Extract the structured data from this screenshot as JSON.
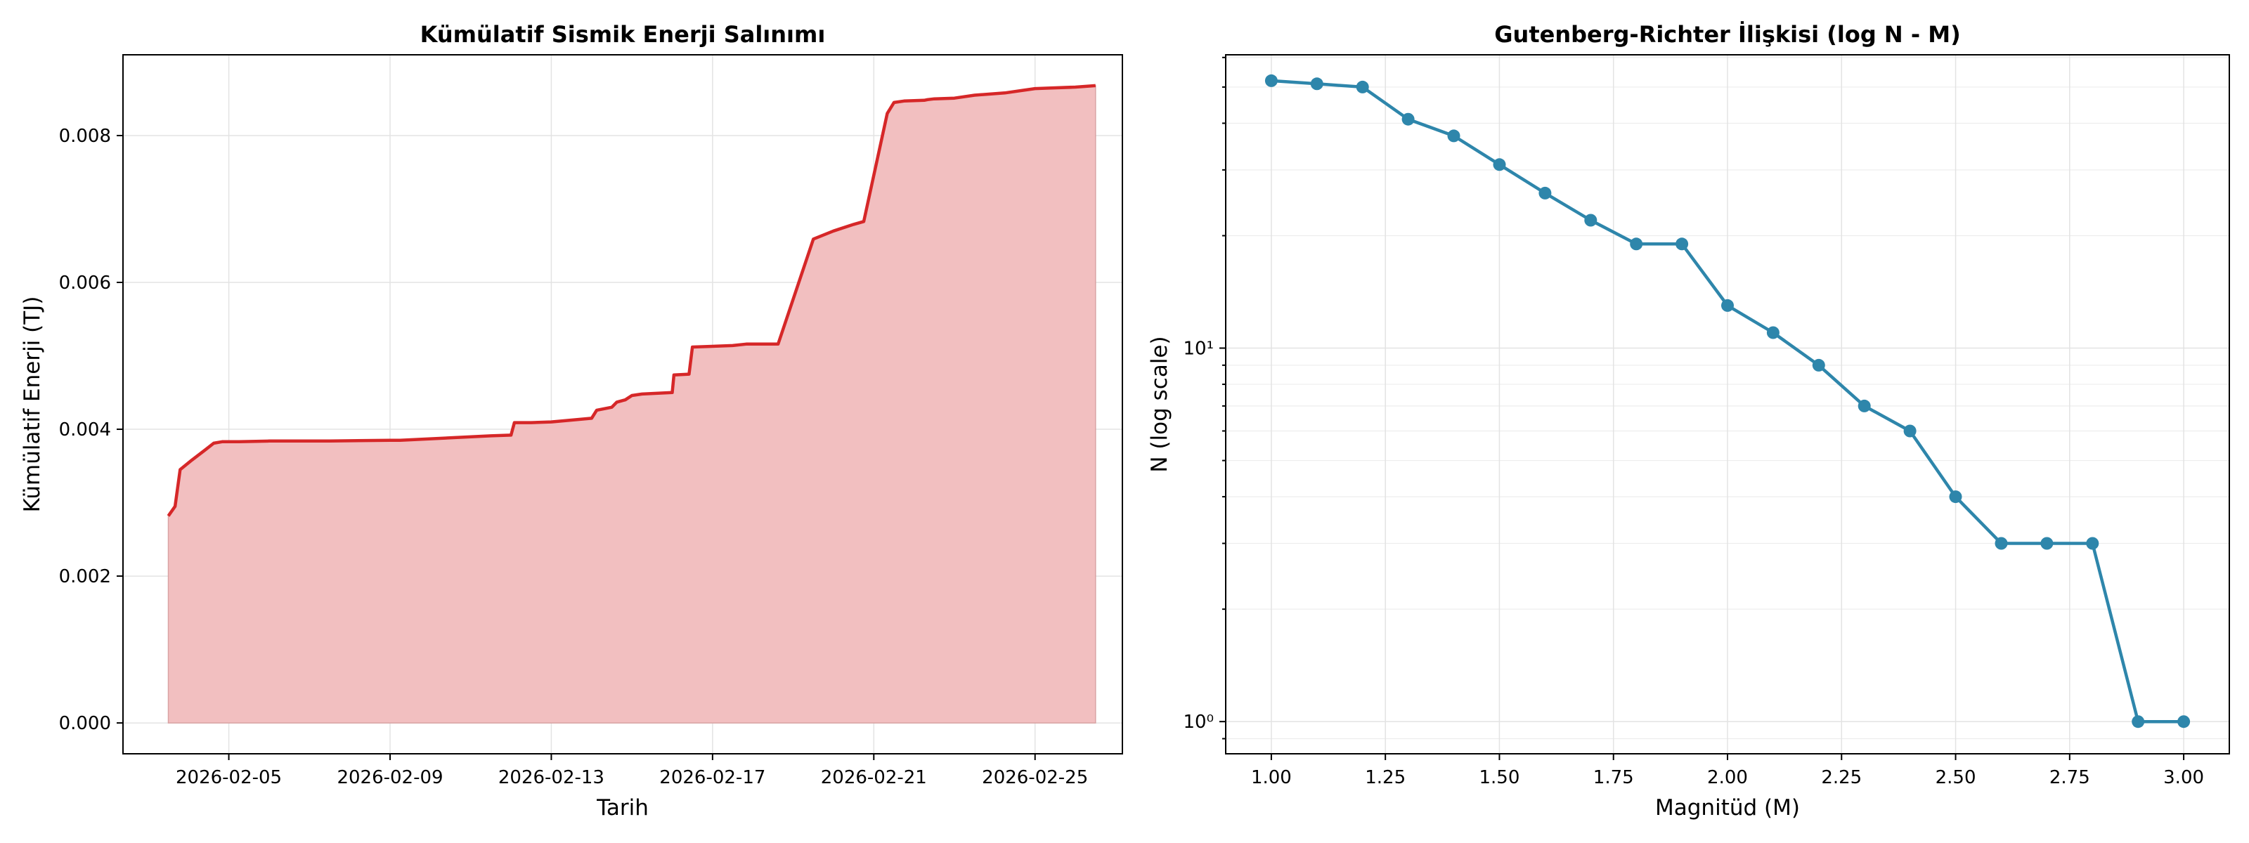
{
  "chart_data": [
    {
      "type": "area",
      "title": "Kümülatif Sismik Enerji Salınımı",
      "xlabel": "Tarih",
      "ylabel": "Kümülatif Enerji (TJ)",
      "x_ticks": [
        "2026-02-05",
        "2026-02-09",
        "2026-02-13",
        "2026-02-17",
        "2026-02-21",
        "2026-02-25"
      ],
      "y_ticks": [
        "0.000",
        "0.002",
        "0.004",
        "0.006",
        "0.008"
      ],
      "xlim": [
        "2026-02-02T09:00",
        "2026-02-27T04:00"
      ],
      "ylim": [
        -0.00042,
        0.0091
      ],
      "grid": true,
      "line_color": "#d62728",
      "fill_color": "#f2bfc0",
      "series": [
        {
          "x": [
            "2026-02-03T12:00",
            "2026-02-03T16:00",
            "2026-02-03T19:00",
            "2026-02-04T02:00",
            "2026-02-04T10:00",
            "2026-02-04T15:00",
            "2026-02-04T20:00",
            "2026-02-05T06:00",
            "2026-02-06T00:00",
            "2026-02-07T12:00",
            "2026-02-09T00:00",
            "2026-02-09T06:00",
            "2026-02-11T12:00",
            "2026-02-12T00:00",
            "2026-02-12T02:00",
            "2026-02-12T12:00",
            "2026-02-13T00:00",
            "2026-02-14T00:00",
            "2026-02-14T03:00",
            "2026-02-14T12:00",
            "2026-02-14T15:00",
            "2026-02-14T20:00",
            "2026-02-15T00:00",
            "2026-02-15T06:00",
            "2026-02-16T00:00",
            "2026-02-16T01:00",
            "2026-02-16T10:00",
            "2026-02-16T12:00",
            "2026-02-17T12:00",
            "2026-02-17T20:00",
            "2026-02-18T15:00",
            "2026-02-19T12:00",
            "2026-02-20T00:00",
            "2026-02-20T12:00",
            "2026-02-20T18:00",
            "2026-02-21T08:00",
            "2026-02-21T12:00",
            "2026-02-21T18:00",
            "2026-02-22T06:00",
            "2026-02-22T08:00",
            "2026-02-22T12:00",
            "2026-02-23T00:00",
            "2026-02-23T12:00",
            "2026-02-24T06:00",
            "2026-02-25T00:00",
            "2026-02-26T00:00",
            "2026-02-26T12:00"
          ],
          "y": [
            0.00282,
            0.00295,
            0.00345,
            0.00358,
            0.00372,
            0.00381,
            0.00383,
            0.00383,
            0.00384,
            0.00384,
            0.00385,
            0.00385,
            0.00391,
            0.00392,
            0.00409,
            0.00409,
            0.0041,
            0.00415,
            0.00426,
            0.0043,
            0.00437,
            0.0044,
            0.00446,
            0.00448,
            0.0045,
            0.00474,
            0.00475,
            0.00512,
            0.00514,
            0.00516,
            0.00516,
            0.00659,
            0.0067,
            0.00679,
            0.00683,
            0.0083,
            0.00845,
            0.00847,
            0.00848,
            0.00849,
            0.0085,
            0.00851,
            0.00855,
            0.00858,
            0.00864,
            0.00866,
            0.00868
          ]
        }
      ]
    },
    {
      "type": "line",
      "title": "Gutenberg-Richter İlişkisi (log N - M)",
      "xlabel": "Magnitüd (M)",
      "ylabel": "N (log scale)",
      "y_scale": "log",
      "x_ticks": [
        "1.00",
        "1.25",
        "1.50",
        "1.75",
        "2.00",
        "2.25",
        "2.50",
        "2.75",
        "3.00"
      ],
      "y_ticks": [
        "10⁰",
        "10¹"
      ],
      "xlim": [
        0.9,
        3.1
      ],
      "ylim": [
        0.82,
        61
      ],
      "grid": true,
      "line_color": "#2e86ab",
      "series": [
        {
          "x": [
            1.0,
            1.1,
            1.2,
            1.3,
            1.4,
            1.5,
            1.6,
            1.7,
            1.8,
            1.9,
            2.0,
            2.1,
            2.2,
            2.3,
            2.4,
            2.5,
            2.6,
            2.7,
            2.8,
            2.9,
            3.0
          ],
          "y": [
            52,
            51,
            50,
            41,
            37,
            31,
            26,
            22,
            19,
            19,
            13,
            11,
            9,
            7,
            6,
            4,
            3,
            3,
            3,
            1,
            1
          ]
        }
      ]
    }
  ]
}
